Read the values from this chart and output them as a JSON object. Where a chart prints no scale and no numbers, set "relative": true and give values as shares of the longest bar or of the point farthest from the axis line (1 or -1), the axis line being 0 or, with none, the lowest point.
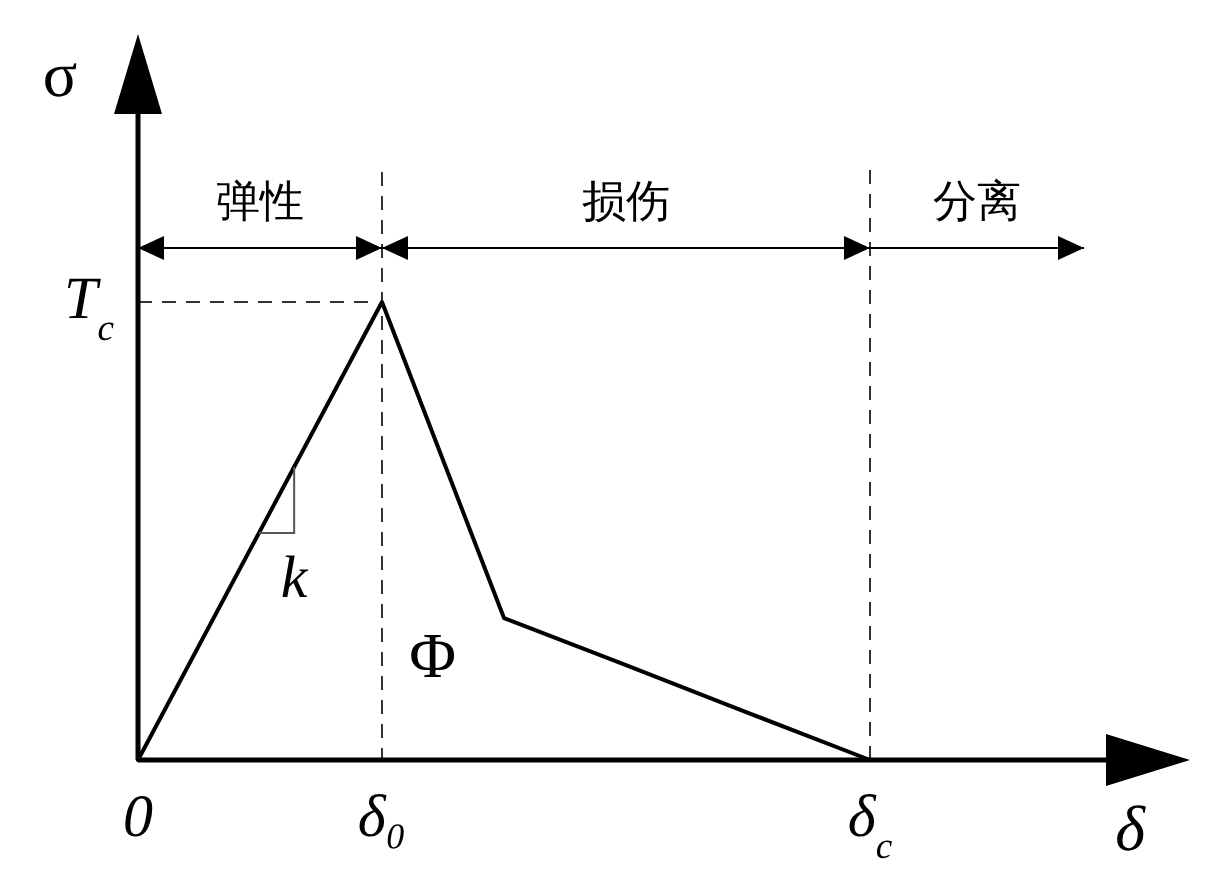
{
  "chart_data": {
    "type": "line",
    "relative": true,
    "xlabel": "δ",
    "ylabel": "σ",
    "categories": [
      "0",
      null,
      "δ₀",
      null,
      null,
      null,
      "δ$_{c}$"
    ],
    "values": [
      0,
      0.5,
      1,
      0.31,
      0.207,
      0.103,
      0
    ],
    "color": "#000000",
    "marker": "none",
    "line_style": "solid",
    "grid": "x",
    "ref_lines": [
      {
        "axis": "y",
        "value": 1,
        "label": "T$_{c}$",
        "line_style": "dashed"
      }
    ],
    "annotations": [
      "弹性",
      "损伤",
      "分离",
      "k",
      "Φ"
    ]
  }
}
